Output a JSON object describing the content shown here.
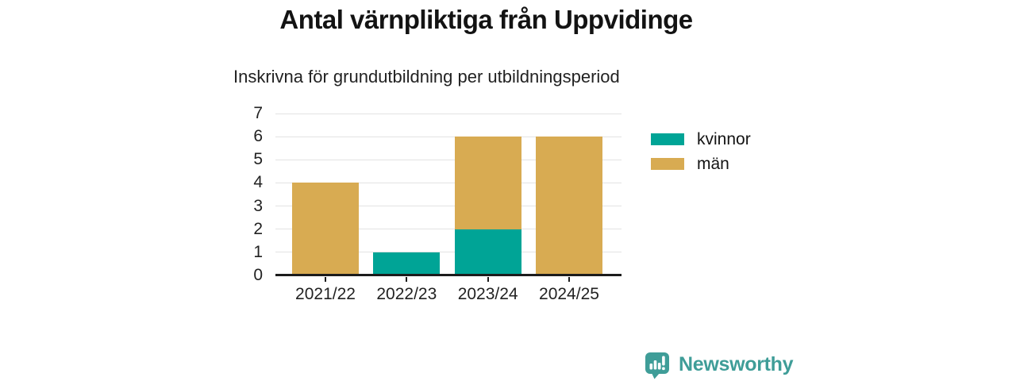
{
  "chart_data": {
    "type": "bar",
    "stacked": true,
    "title": "Antal värnpliktiga från Uppvidinge",
    "subtitle": "Inskrivna för grundutbildning per utbildningsperiod",
    "categories": [
      "2021/22",
      "2022/23",
      "2023/24",
      "2024/25"
    ],
    "series": [
      {
        "name": "kvinnor",
        "color": "#00a496",
        "values": [
          0,
          1,
          2,
          0
        ]
      },
      {
        "name": "män",
        "color": "#d8ab52",
        "values": [
          4,
          0,
          4,
          6
        ]
      }
    ],
    "totals": [
      4,
      1,
      6,
      6
    ],
    "ylim": [
      0,
      7
    ],
    "yticks": [
      0,
      1,
      2,
      3,
      4,
      5,
      6,
      7
    ],
    "grid": "horizontal",
    "legend_position": "right",
    "axis_color": "#1c1c1c",
    "grid_color": "#e3e3e3"
  },
  "brand": {
    "name": "Newsworthy",
    "color": "#3f9d98",
    "icon": "bar-chart-speech-bubble-icon"
  }
}
